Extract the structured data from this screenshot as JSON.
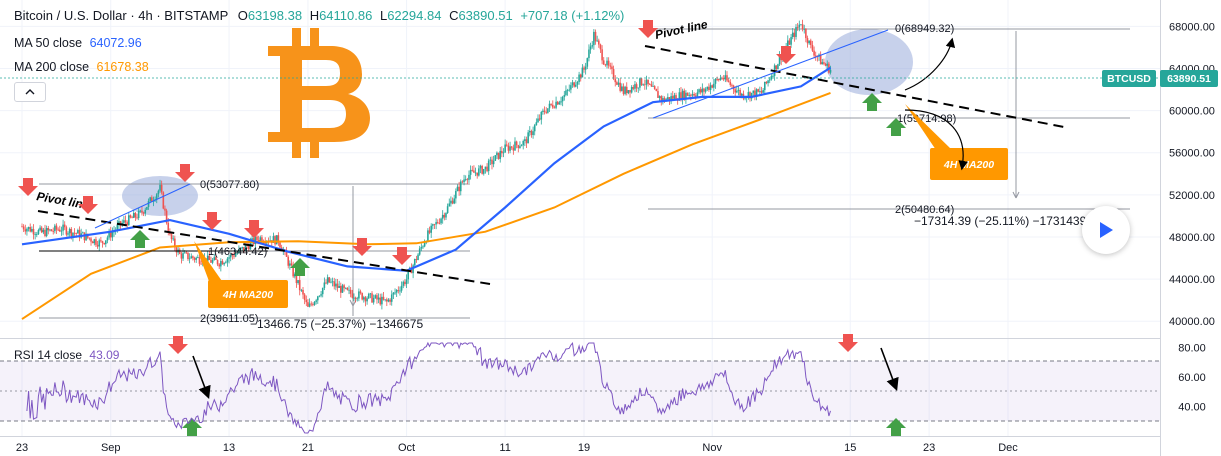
{
  "header": {
    "symbol": "Bitcoin / U.S. Dollar · 4h · BITSTAMP",
    "o_label": "O",
    "o_value": "63198.38",
    "h_label": "H",
    "h_value": "64110.86",
    "l_label": "L",
    "l_value": "62294.84",
    "c_label": "C",
    "c_value": "63890.51",
    "change": "+707.18 (+1.12%)"
  },
  "ma50": {
    "label": "MA 50 close",
    "value": "64072.96",
    "color": "#2962ff"
  },
  "ma200": {
    "label": "MA 200 close",
    "value": "61678.38",
    "color": "#ff9800"
  },
  "rsi": {
    "label": "RSI 14 close",
    "value": "43.09",
    "color": "#7e57c2"
  },
  "collapse_icon": "chevron-up-icon",
  "play_icon": "play-icon",
  "logo": "bitcoin-logo",
  "colors": {
    "up": "#26a69a",
    "down": "#ef5350",
    "price_tag": "#26a69a",
    "annotation": "#ff9800"
  },
  "chart_data": [
    {
      "type": "candlestick",
      "title": "Bitcoin / U.S. Dollar · 4h · BITSTAMP",
      "ylim": [
        38500,
        70500
      ],
      "y_ticks": [
        "68000.00",
        "64000.00",
        "60000.00",
        "56000.00",
        "52000.00",
        "48000.00",
        "44000.00",
        "40000.00"
      ],
      "x_ticks": [
        "23",
        "Sep",
        "13",
        "21",
        "Oct",
        "11",
        "19",
        "Nov",
        "15",
        "23",
        "Dec"
      ],
      "last_price": {
        "label": "BTCUSD",
        "value": "63890.51"
      },
      "price_path": [
        [
          "Aug 23",
          49000
        ],
        [
          "Aug 25",
          48400
        ],
        [
          "Aug 27",
          48800
        ],
        [
          "Aug 29",
          48200
        ],
        [
          "Aug 31",
          47400
        ],
        [
          "Sep 2",
          49200
        ],
        [
          "Sep 4",
          50200
        ],
        [
          "Sep 6",
          52600
        ],
        [
          "Sep 7",
          48000
        ],
        [
          "Sep 8",
          46300
        ],
        [
          "Sep 10",
          45900
        ],
        [
          "Sep 12",
          45600
        ],
        [
          "Sep 14",
          46600
        ],
        [
          "Sep 16",
          47900
        ],
        [
          "Sep 18",
          47700
        ],
        [
          "Sep 20",
          43500
        ],
        [
          "Sep 21",
          41200
        ],
        [
          "Sep 23",
          43800
        ],
        [
          "Sep 25",
          42700
        ],
        [
          "Sep 27",
          42300
        ],
        [
          "Sep 29",
          41800
        ],
        [
          "Oct 1",
          44000
        ],
        [
          "Oct 3",
          48000
        ],
        [
          "Oct 5",
          50500
        ],
        [
          "Oct 7",
          53800
        ],
        [
          "Oct 9",
          54500
        ],
        [
          "Oct 11",
          56400
        ],
        [
          "Oct 13",
          57000
        ],
        [
          "Oct 15",
          60000
        ],
        [
          "Oct 17",
          61400
        ],
        [
          "Oct 19",
          63900
        ],
        [
          "Oct 20",
          67200
        ],
        [
          "Oct 21",
          64800
        ],
        [
          "Oct 23",
          61800
        ],
        [
          "Oct 25",
          62800
        ],
        [
          "Oct 27",
          61000
        ],
        [
          "Oct 29",
          61500
        ],
        [
          "Oct 31",
          61800
        ],
        [
          "Nov 2",
          63200
        ],
        [
          "Nov 4",
          61500
        ],
        [
          "Nov 6",
          61700
        ],
        [
          "Nov 8",
          65200
        ],
        [
          "Nov 10",
          68400
        ],
        [
          "Nov 11",
          66000
        ],
        [
          "Nov 12",
          64700
        ],
        [
          "Nov 13",
          63890
        ]
      ],
      "ma50_path": [
        [
          "Aug 23",
          47300
        ],
        [
          "Sep 1",
          48500
        ],
        [
          "Sep 7",
          49600
        ],
        [
          "Sep 13",
          48300
        ],
        [
          "Sep 19",
          46600
        ],
        [
          "Sep 25",
          45200
        ],
        [
          "Oct 1",
          44800
        ],
        [
          "Oct 6",
          46800
        ],
        [
          "Oct 11",
          50800
        ],
        [
          "Oct 16",
          55000
        ],
        [
          "Oct 21",
          58500
        ],
        [
          "Oct 26",
          60800
        ],
        [
          "Oct 31",
          61300
        ],
        [
          "Nov 5",
          61300
        ],
        [
          "Nov 10",
          62300
        ],
        [
          "Nov 13",
          64070
        ]
      ],
      "ma200_path": [
        [
          "Aug 23",
          40200
        ],
        [
          "Aug 30",
          44500
        ],
        [
          "Sep 6",
          47000
        ],
        [
          "Sep 13",
          47500
        ],
        [
          "Sep 20",
          47600
        ],
        [
          "Sep 27",
          47300
        ],
        [
          "Oct 2",
          47400
        ],
        [
          "Oct 9",
          48500
        ],
        [
          "Oct 16",
          50800
        ],
        [
          "Oct 23",
          54000
        ],
        [
          "Oct 30",
          56800
        ],
        [
          "Nov 6",
          59200
        ],
        [
          "Nov 13",
          61680
        ]
      ],
      "annotations": {
        "fib_top_1": "0(53077.80)",
        "fib_mid_1": "1(46344.42)",
        "fib_bottom_1": "2(39611.05)",
        "measure_1": "−13466.75 (−25.37%) −1346675",
        "fib_top_2": "0(68949.32)",
        "fib_mid_2": "1(59714.98)",
        "fib_bottom_2": "2(50480.64)",
        "measure_2": "−17314.39 (−25.11%) −1731439",
        "pivot_label_1": "Pivot line",
        "pivot_label_2": "Pivot line",
        "ma200_label_1": "4H MA200",
        "ma200_label_2": "4H MA200"
      }
    },
    {
      "type": "line",
      "title": "RSI 14 close",
      "ylim": [
        20,
        85
      ],
      "y_ticks": [
        "80.00",
        "60.00",
        "40.00"
      ],
      "latest": "43.09"
    }
  ]
}
